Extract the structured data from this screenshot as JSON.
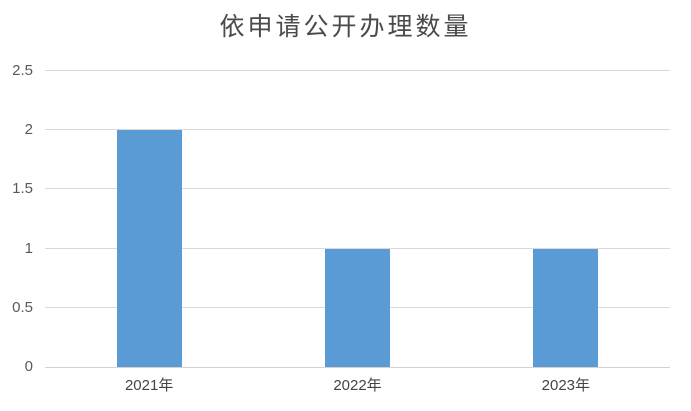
{
  "chart_data": {
    "type": "bar",
    "title": "依申请公开办理数量",
    "categories": [
      "2021年",
      "2022年",
      "2023年"
    ],
    "values": [
      2,
      1,
      1
    ],
    "xlabel": "",
    "ylabel": "",
    "ylim": [
      0,
      2.5
    ],
    "ytick_labels": [
      "0",
      "0.5",
      "1",
      "1.5",
      "2",
      "2.5"
    ],
    "grid": "horizontal",
    "legend": "none",
    "colors": {
      "bar": "#5b9bd5",
      "gridline": "#d9d9d9",
      "axis_line": "#d2d2d2",
      "tick_text": "#595959",
      "x_label_text": "#444444",
      "title_text": "#4a4a4a"
    }
  }
}
